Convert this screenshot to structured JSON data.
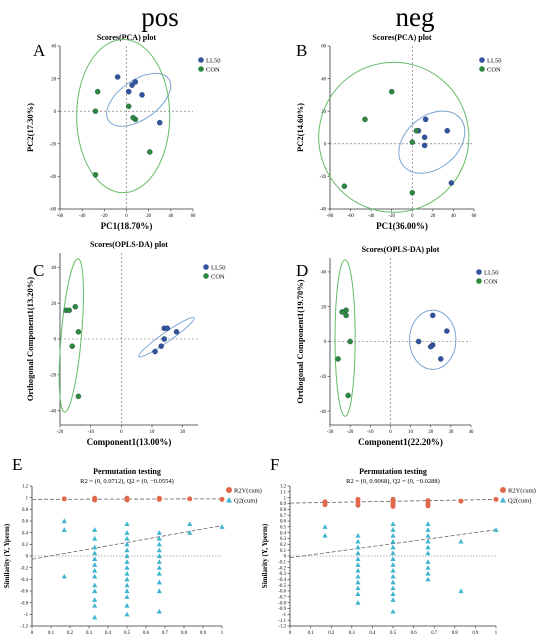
{
  "column_titles": [
    "pos",
    "neg"
  ],
  "colors": {
    "LL50": "#3355a0",
    "CON": "#2c8a3e",
    "LL50_ellipse": "#7aa5d2",
    "CON_ellipse": "#66bb66",
    "axis": "#333333",
    "dashed": "#666666",
    "R2Y": "#e0694b",
    "Q2": "#3fb4d0"
  },
  "chart_data": [
    {
      "panel": "A",
      "type": "scatter",
      "title": "Scores(PCA) plot",
      "xlabel": "PC1(18.70%)",
      "ylabel": "PC2(17.30%)",
      "xlim": [
        -60,
        60
      ],
      "ylim": [
        -60,
        40
      ],
      "xticks": [
        -60,
        -40,
        -20,
        0,
        20,
        40,
        60
      ],
      "yticks": [
        -60,
        -40,
        -20,
        0,
        20,
        40
      ],
      "legend": "top-right",
      "series": [
        {
          "name": "LL50",
          "points": [
            [
              -8,
              21
            ],
            [
              5,
              16
            ],
            [
              8,
              18
            ],
            [
              14,
              10
            ],
            [
              2,
              12
            ],
            [
              30,
              -7
            ]
          ]
        },
        {
          "name": "CON",
          "points": [
            [
              -26,
              12
            ],
            [
              -28,
              0
            ],
            [
              2,
              3
            ],
            [
              8,
              -5
            ],
            [
              6,
              -4
            ],
            [
              21,
              -25
            ],
            [
              -28,
              -39
            ]
          ]
        }
      ],
      "ellipses": [
        {
          "series": "LL50",
          "cx": 11,
          "cy": 7,
          "rx": 33,
          "ry": 12,
          "angle": -35
        },
        {
          "series": "CON",
          "cx": -3,
          "cy": -3,
          "rx": 42,
          "ry": 47,
          "angle": 0
        }
      ]
    },
    {
      "panel": "B",
      "type": "scatter",
      "title": "Scores(PCA) plot",
      "xlabel": "PC1(36.00%)",
      "ylabel": "PC2(14.60%)",
      "xlim": [
        -80,
        60
      ],
      "ylim": [
        -40,
        60
      ],
      "xticks": [
        -80,
        -60,
        -40,
        -20,
        0,
        20,
        40,
        60
      ],
      "yticks": [
        -40,
        -20,
        0,
        20,
        40,
        60
      ],
      "legend": "top-right",
      "series": [
        {
          "name": "LL50",
          "points": [
            [
              13,
              15
            ],
            [
              6,
              8
            ],
            [
              34,
              8
            ],
            [
              12,
              4
            ],
            [
              12,
              -1
            ],
            [
              38,
              -24
            ]
          ]
        },
        {
          "name": "CON",
          "points": [
            [
              -20,
              32
            ],
            [
              -46,
              15
            ],
            [
              0,
              1
            ],
            [
              4,
              8
            ],
            [
              -66,
              -26
            ],
            [
              0,
              -30
            ]
          ]
        }
      ],
      "ellipses": [
        {
          "series": "LL50",
          "cx": 19,
          "cy": 1,
          "rx": 36,
          "ry": 16,
          "angle": -40
        },
        {
          "series": "CON",
          "cx": -18,
          "cy": 4,
          "rx": 73,
          "ry": 46,
          "angle": -5
        }
      ]
    },
    {
      "panel": "C",
      "type": "scatter",
      "title": "Scores(OPLS-DA) plot",
      "xlabel": "Component1(13.00%)",
      "ylabel": "Orthogonal Component1(13.20%)",
      "xlim": [
        -20,
        25
      ],
      "ylim": [
        -48,
        48
      ],
      "xticks": [
        -20,
        -10,
        0,
        10,
        20
      ],
      "yticks": [
        -40,
        -20,
        0,
        20,
        40
      ],
      "legend": "top-right",
      "series": [
        {
          "name": "LL50",
          "points": [
            [
              14,
              6
            ],
            [
              15,
              6
            ],
            [
              18,
              4
            ],
            [
              14,
              0
            ],
            [
              13,
              -4
            ],
            [
              11,
              -7
            ]
          ]
        },
        {
          "name": "CON",
          "points": [
            [
              -15,
              18
            ],
            [
              -18,
              16
            ],
            [
              -17,
              16
            ],
            [
              -14,
              4
            ],
            [
              -16,
              -4
            ],
            [
              -14,
              -32
            ]
          ]
        }
      ],
      "ellipses": [
        {
          "series": "LL50",
          "cx": 14.7,
          "cy": 1,
          "rx": 11,
          "ry": 2.6,
          "angle": -35
        },
        {
          "series": "CON",
          "cx": -16.3,
          "cy": 2,
          "rx": 3.3,
          "ry": 43,
          "angle": 5
        }
      ]
    },
    {
      "panel": "D",
      "type": "scatter",
      "title": "Scores(OPLS-DA) plot",
      "xlabel": "Component1(22.20%)",
      "ylabel": "Orthogonal Component1(19.70%)",
      "xlim": [
        -30,
        40
      ],
      "ylim": [
        -48,
        48
      ],
      "xticks": [
        -30,
        -20,
        -10,
        0,
        10,
        20,
        30,
        40
      ],
      "yticks": [
        -40,
        -20,
        0,
        20,
        40
      ],
      "legend": "top-right",
      "series": [
        {
          "name": "LL50",
          "points": [
            [
              21,
              15
            ],
            [
              28,
              6
            ],
            [
              14,
              0
            ],
            [
              21,
              -2
            ],
            [
              20,
              -3
            ],
            [
              25,
              -10
            ]
          ]
        },
        {
          "name": "CON",
          "points": [
            [
              -22,
              18
            ],
            [
              -24,
              17
            ],
            [
              -22,
              15
            ],
            [
              -20,
              0
            ],
            [
              -26,
              -10
            ],
            [
              -21,
              -31
            ]
          ]
        }
      ],
      "ellipses": [
        {
          "series": "LL50",
          "cx": 21,
          "cy": 1,
          "rx": 11.5,
          "ry": 17,
          "angle": 0
        },
        {
          "series": "CON",
          "cx": -22.5,
          "cy": 2,
          "rx": 5,
          "ry": 45,
          "angle": 0
        }
      ]
    },
    {
      "panel": "E",
      "type": "scatter",
      "title": "Permutation testing",
      "subtitle": "R2 = (0, 0.9712), Q2 = (0, −0.0554)",
      "xlabel": "",
      "ylabel": "Similarity (Y, Yperm)",
      "xlim": [
        0,
        1
      ],
      "ylim": [
        -1.2,
        1.2
      ],
      "xticks": [
        0,
        0.1,
        0.2,
        0.3,
        0.4,
        0.5,
        0.6,
        0.7,
        0.8,
        0.9,
        1
      ],
      "yticks": [
        -1.2,
        -1,
        -0.8,
        -0.6,
        -0.4,
        -0.2,
        0,
        0.2,
        0.4,
        0.6,
        0.8,
        1,
        1.2
      ],
      "legend": "top-right",
      "series": [
        {
          "name": "R2Y(cum)",
          "x": [
            0.17,
            0.33,
            0.33,
            0.33,
            0.5,
            0.5,
            0.5,
            0.67,
            0.67,
            0.67,
            0.83,
            1
          ],
          "y": [
            0.98,
            0.97,
            0.99,
            0.96,
            0.97,
            0.99,
            0.96,
            0.98,
            0.97,
            0.99,
            0.98,
            0.97
          ]
        },
        {
          "name": "Q2(cum)",
          "x": [
            0.17,
            0.17,
            0.17,
            0.33,
            0.33,
            0.33,
            0.33,
            0.33,
            0.33,
            0.33,
            0.33,
            0.33,
            0.33,
            0.33,
            0.33,
            0.33,
            0.5,
            0.5,
            0.5,
            0.5,
            0.5,
            0.5,
            0.5,
            0.5,
            0.5,
            0.5,
            0.5,
            0.5,
            0.5,
            0.5,
            0.5,
            0.67,
            0.67,
            0.67,
            0.67,
            0.67,
            0.67,
            0.67,
            0.67,
            0.67,
            0.67,
            0.67,
            0.83,
            0.83,
            1
          ],
          "y": [
            0.6,
            0.45,
            -0.35,
            0.45,
            0.3,
            0.15,
            0.05,
            -0.05,
            -0.15,
            -0.25,
            -0.35,
            -0.5,
            -0.6,
            -0.75,
            -0.85,
            -1.05,
            0.55,
            0.4,
            0.3,
            0.2,
            0.1,
            0,
            -0.1,
            -0.2,
            -0.3,
            -0.4,
            -0.5,
            -0.6,
            -0.7,
            -0.85,
            -1.0,
            0.4,
            0.3,
            0.2,
            0.1,
            0,
            -0.1,
            -0.2,
            -0.3,
            -0.45,
            -0.6,
            -0.95,
            0.55,
            0.4,
            0.5
          ]
        }
      ],
      "trendlines": [
        {
          "series": "R2Y(cum)",
          "y0": 0.971,
          "y1": 0.98
        },
        {
          "series": "Q2(cum)",
          "y0": -0.055,
          "y1": 0.52
        }
      ]
    },
    {
      "panel": "F",
      "type": "scatter",
      "title": "Permutation testing",
      "subtitle": "R2 = (0, 0.9068), Q2 = (0, −0.0288)",
      "xlabel": "",
      "ylabel": "Similarity (Y, Yperm)",
      "xlim": [
        0,
        1
      ],
      "ylim": [
        -1.2,
        1.2
      ],
      "xticks": [
        0,
        0.1,
        0.2,
        0.3,
        0.4,
        0.5,
        0.6,
        0.7,
        0.8,
        0.9,
        1
      ],
      "yticks": [
        -1.2,
        -1.1,
        -1,
        -0.9,
        -0.8,
        -0.7,
        -0.6,
        -0.5,
        -0.4,
        -0.3,
        -0.2,
        -0.1,
        0,
        0.1,
        0.2,
        0.3,
        0.4,
        0.5,
        0.6,
        0.7,
        0.8,
        0.9,
        1,
        1.1,
        1.2
      ],
      "legend": "top-right",
      "series": [
        {
          "name": "R2Y(cum)",
          "x": [
            0.17,
            0.17,
            0.33,
            0.33,
            0.33,
            0.5,
            0.5,
            0.5,
            0.5,
            0.67,
            0.67,
            0.67,
            0.83,
            1
          ],
          "y": [
            0.93,
            0.88,
            0.97,
            0.92,
            0.87,
            0.97,
            0.93,
            0.89,
            0.85,
            0.95,
            0.9,
            0.86,
            0.94,
            0.97
          ]
        },
        {
          "name": "Q2(cum)",
          "x": [
            0.17,
            0.17,
            0.33,
            0.33,
            0.33,
            0.33,
            0.33,
            0.33,
            0.33,
            0.33,
            0.33,
            0.33,
            0.33,
            0.33,
            0.5,
            0.5,
            0.5,
            0.5,
            0.5,
            0.5,
            0.5,
            0.5,
            0.5,
            0.5,
            0.5,
            0.5,
            0.5,
            0.5,
            0.5,
            0.67,
            0.67,
            0.67,
            0.67,
            0.67,
            0.67,
            0.67,
            0.67,
            0.67,
            0.67,
            0.83,
            0.83,
            1
          ],
          "y": [
            0.5,
            0.35,
            0.35,
            0.25,
            0.15,
            0.05,
            -0.05,
            -0.15,
            -0.25,
            -0.35,
            -0.45,
            -0.55,
            -0.65,
            -0.8,
            0.55,
            0.45,
            0.35,
            0.25,
            0.15,
            0.05,
            -0.05,
            -0.15,
            -0.25,
            -0.35,
            -0.45,
            -0.55,
            -0.65,
            -0.75,
            -0.95,
            0.55,
            0.45,
            0.35,
            0.25,
            0.15,
            0.05,
            -0.1,
            -0.2,
            -0.3,
            -0.4,
            0.25,
            -0.6,
            0.45
          ]
        }
      ],
      "trendlines": [
        {
          "series": "R2Y(cum)",
          "y0": 0.907,
          "y1": 0.97
        },
        {
          "series": "Q2(cum)",
          "y0": -0.029,
          "y1": 0.45
        }
      ]
    }
  ]
}
